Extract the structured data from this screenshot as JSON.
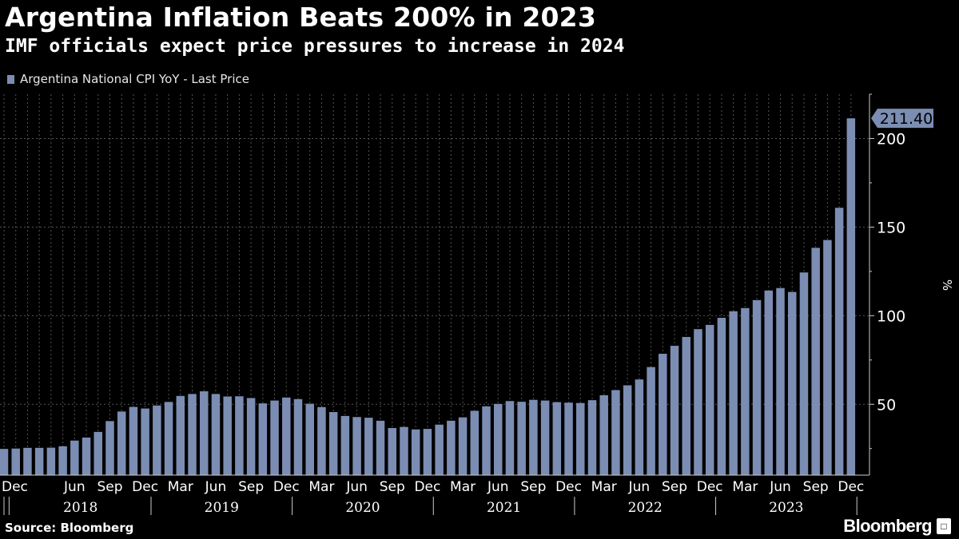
{
  "header": {
    "title": "Argentina Inflation Beats 200% in 2023",
    "subtitle": "IMF officials expect price pressures to increase in 2024"
  },
  "footer": {
    "source": "Source: Bloomberg",
    "brand": "Bloomberg",
    "brand_icon": "bloomberg-terminal-icon"
  },
  "colors": {
    "background": "#000000",
    "bar": "#7b8db2",
    "grid": "#555555",
    "text": "#ffffff"
  },
  "chart_data": {
    "type": "bar",
    "title": "Argentina Inflation Beats 200% in 2023",
    "subtitle": "IMF officials expect price pressures to increase in 2024",
    "ylabel": "%",
    "ylim": [
      10,
      225
    ],
    "yticks": [
      50,
      100,
      150,
      200
    ],
    "grid": true,
    "legend_placement": "top-left",
    "last_value_label": "211.40",
    "x_month_labels": [
      "Dec",
      "Jun",
      "Sep",
      "Dec",
      "Mar",
      "Jun",
      "Sep",
      "Dec",
      "Mar",
      "Jun",
      "Sep",
      "Dec",
      "Mar",
      "Jun",
      "Sep",
      "Dec",
      "Mar",
      "Jun",
      "Sep",
      "Dec",
      "Mar",
      "Jun",
      "Sep",
      "Dec"
    ],
    "x_year_labels": [
      "2018",
      "2019",
      "2020",
      "2021",
      "2022",
      "2023"
    ],
    "categories": [
      "2017-12",
      "2018-01",
      "2018-02",
      "2018-03",
      "2018-04",
      "2018-05",
      "2018-06",
      "2018-07",
      "2018-08",
      "2018-09",
      "2018-10",
      "2018-11",
      "2018-12",
      "2019-01",
      "2019-02",
      "2019-03",
      "2019-04",
      "2019-05",
      "2019-06",
      "2019-07",
      "2019-08",
      "2019-09",
      "2019-10",
      "2019-11",
      "2019-12",
      "2020-01",
      "2020-02",
      "2020-03",
      "2020-04",
      "2020-05",
      "2020-06",
      "2020-07",
      "2020-08",
      "2020-09",
      "2020-10",
      "2020-11",
      "2020-12",
      "2021-01",
      "2021-02",
      "2021-03",
      "2021-04",
      "2021-05",
      "2021-06",
      "2021-07",
      "2021-08",
      "2021-09",
      "2021-10",
      "2021-11",
      "2021-12",
      "2022-01",
      "2022-02",
      "2022-03",
      "2022-04",
      "2022-05",
      "2022-06",
      "2022-07",
      "2022-08",
      "2022-09",
      "2022-10",
      "2022-11",
      "2022-12",
      "2023-01",
      "2023-02",
      "2023-03",
      "2023-04",
      "2023-05",
      "2023-06",
      "2023-07",
      "2023-08",
      "2023-09",
      "2023-10",
      "2023-11",
      "2023-12"
    ],
    "series": [
      {
        "name": "Argentina National CPI YoY - Last Price",
        "values": [
          24.8,
          25.0,
          25.4,
          25.4,
          25.5,
          26.3,
          29.5,
          31.2,
          34.4,
          40.5,
          45.9,
          48.5,
          47.6,
          49.3,
          51.3,
          54.7,
          55.8,
          57.3,
          55.8,
          54.4,
          54.5,
          53.5,
          50.5,
          52.1,
          53.8,
          52.9,
          50.3,
          48.4,
          45.6,
          43.4,
          42.8,
          42.4,
          40.7,
          36.6,
          37.2,
          35.8,
          36.1,
          38.5,
          40.7,
          42.6,
          46.3,
          48.8,
          50.2,
          51.8,
          51.4,
          52.5,
          52.1,
          51.2,
          50.9,
          50.7,
          52.3,
          55.1,
          58.0,
          60.7,
          64.0,
          71.0,
          78.5,
          83.0,
          88.0,
          92.4,
          94.8,
          98.8,
          102.5,
          104.3,
          108.8,
          114.2,
          115.6,
          113.4,
          124.4,
          138.3,
          142.7,
          160.9,
          211.4
        ]
      }
    ]
  }
}
